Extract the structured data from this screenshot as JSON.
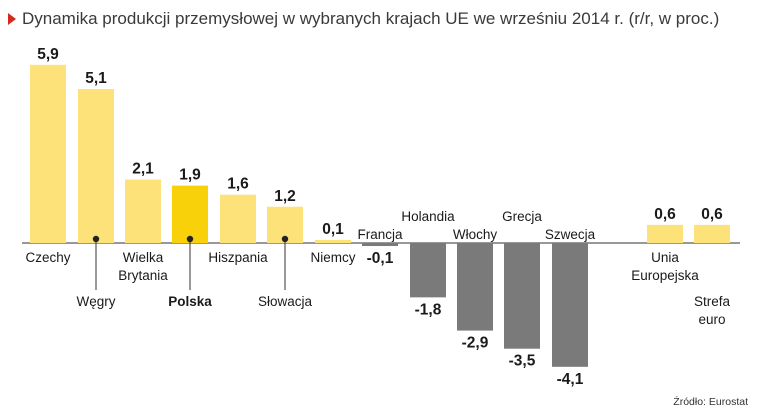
{
  "chart_data": {
    "type": "bar",
    "title": "Dynamika produkcji przemysłowej w wybranych krajach UE we wrześniu 2014 r. (r/r, w proc.)",
    "categories": [
      {
        "label": "Czechy",
        "value": 5.9,
        "value_label": "5,9",
        "highlight": false,
        "label_row": "low",
        "marker": false
      },
      {
        "label": "Węgry",
        "value": 5.1,
        "value_label": "5,1",
        "highlight": false,
        "label_row": "bottom",
        "marker": true
      },
      {
        "label": "Wielka Brytania",
        "lines": [
          "Wielka",
          "Brytania"
        ],
        "value": 2.1,
        "value_label": "2,1",
        "highlight": false,
        "label_row": "low",
        "marker": false
      },
      {
        "label": "Polska",
        "value": 1.9,
        "value_label": "1,9",
        "highlight": true,
        "label_row": "bottom",
        "marker": true
      },
      {
        "label": "Hiszpania",
        "value": 1.6,
        "value_label": "1,6",
        "highlight": false,
        "label_row": "low",
        "marker": false
      },
      {
        "label": "Słowacja",
        "value": 1.2,
        "value_label": "1,2",
        "highlight": false,
        "label_row": "bottom",
        "marker": true
      },
      {
        "label": "Niemcy",
        "value": 0.1,
        "value_label": "0,1",
        "highlight": false,
        "label_row": "low",
        "marker": false
      },
      {
        "label": "Francja",
        "value": -0.1,
        "value_label": "-0,1",
        "highlight": false,
        "label_row": "up1",
        "marker": false
      },
      {
        "label": "Holandia",
        "value": -1.8,
        "value_label": "-1,8",
        "highlight": false,
        "label_row": "up2",
        "marker": false
      },
      {
        "label": "Włochy",
        "value": -2.9,
        "value_label": "-2,9",
        "highlight": false,
        "label_row": "up1",
        "marker": false
      },
      {
        "label": "Grecja",
        "value": -3.5,
        "value_label": "-3,5",
        "highlight": false,
        "label_row": "up2",
        "marker": false
      },
      {
        "label": "Szwecja",
        "value": -4.1,
        "value_label": "-4,1",
        "highlight": false,
        "label_row": "up1",
        "marker": false
      },
      {
        "label": "Unia Europejska",
        "lines": [
          "Unia",
          "Europejska"
        ],
        "value": 0.6,
        "value_label": "0,6",
        "highlight": false,
        "label_row": "low",
        "marker": false
      },
      {
        "label": "Strefa euro",
        "lines": [
          "Strefa",
          "euro"
        ],
        "value": 0.6,
        "value_label": "0,6",
        "highlight": false,
        "label_row": "bottom",
        "marker": false
      }
    ],
    "source": "Źródło: Eurostat"
  },
  "colors": {
    "positive": "#fde27a",
    "highlight": "#f9d10a",
    "negative": "#7a7a7a",
    "baseline": "#777777",
    "text": "#1a1a1a",
    "title_marker": "#d22a1e"
  }
}
